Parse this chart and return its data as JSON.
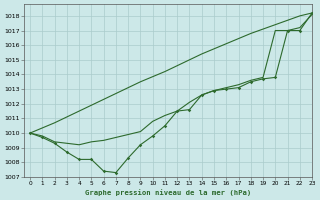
{
  "background_color": "#cce8e8",
  "grid_color": "#aacccc",
  "line_color": "#2d6a2d",
  "title": "Graphe pression niveau de la mer (hPa)",
  "xlim": [
    -0.5,
    23
  ],
  "ylim": [
    1007,
    1018.8
  ],
  "yticks": [
    1007,
    1008,
    1009,
    1010,
    1011,
    1012,
    1013,
    1014,
    1015,
    1016,
    1017,
    1018
  ],
  "xticks": [
    0,
    1,
    2,
    3,
    4,
    5,
    6,
    7,
    8,
    9,
    10,
    11,
    12,
    13,
    14,
    15,
    16,
    17,
    18,
    19,
    20,
    21,
    22,
    23
  ],
  "s1y": [
    1010.0,
    1010.35,
    1010.7,
    1011.1,
    1011.5,
    1011.9,
    1012.3,
    1012.7,
    1013.1,
    1013.5,
    1013.85,
    1014.2,
    1014.6,
    1015.0,
    1015.4,
    1015.75,
    1016.1,
    1016.45,
    1016.8,
    1017.1,
    1017.4,
    1017.7,
    1018.0,
    1018.2
  ],
  "s2y": [
    1010.0,
    1009.8,
    1009.4,
    1009.3,
    1009.2,
    1009.4,
    1009.5,
    1009.7,
    1009.9,
    1010.1,
    1010.8,
    1011.2,
    1011.5,
    1012.1,
    1012.6,
    1012.9,
    1013.1,
    1013.3,
    1013.6,
    1013.8,
    1017.0,
    1017.0,
    1017.2,
    1018.1
  ],
  "s3y": [
    1010.0,
    1009.7,
    1009.3,
    1008.7,
    1008.2,
    1008.2,
    1007.4,
    1007.3,
    1008.3,
    1009.2,
    1009.8,
    1010.5,
    1011.5,
    1011.6,
    1012.6,
    1012.9,
    1013.0,
    1013.1,
    1013.5,
    1013.7,
    1013.8,
    1017.0,
    1017.0,
    1018.2
  ]
}
